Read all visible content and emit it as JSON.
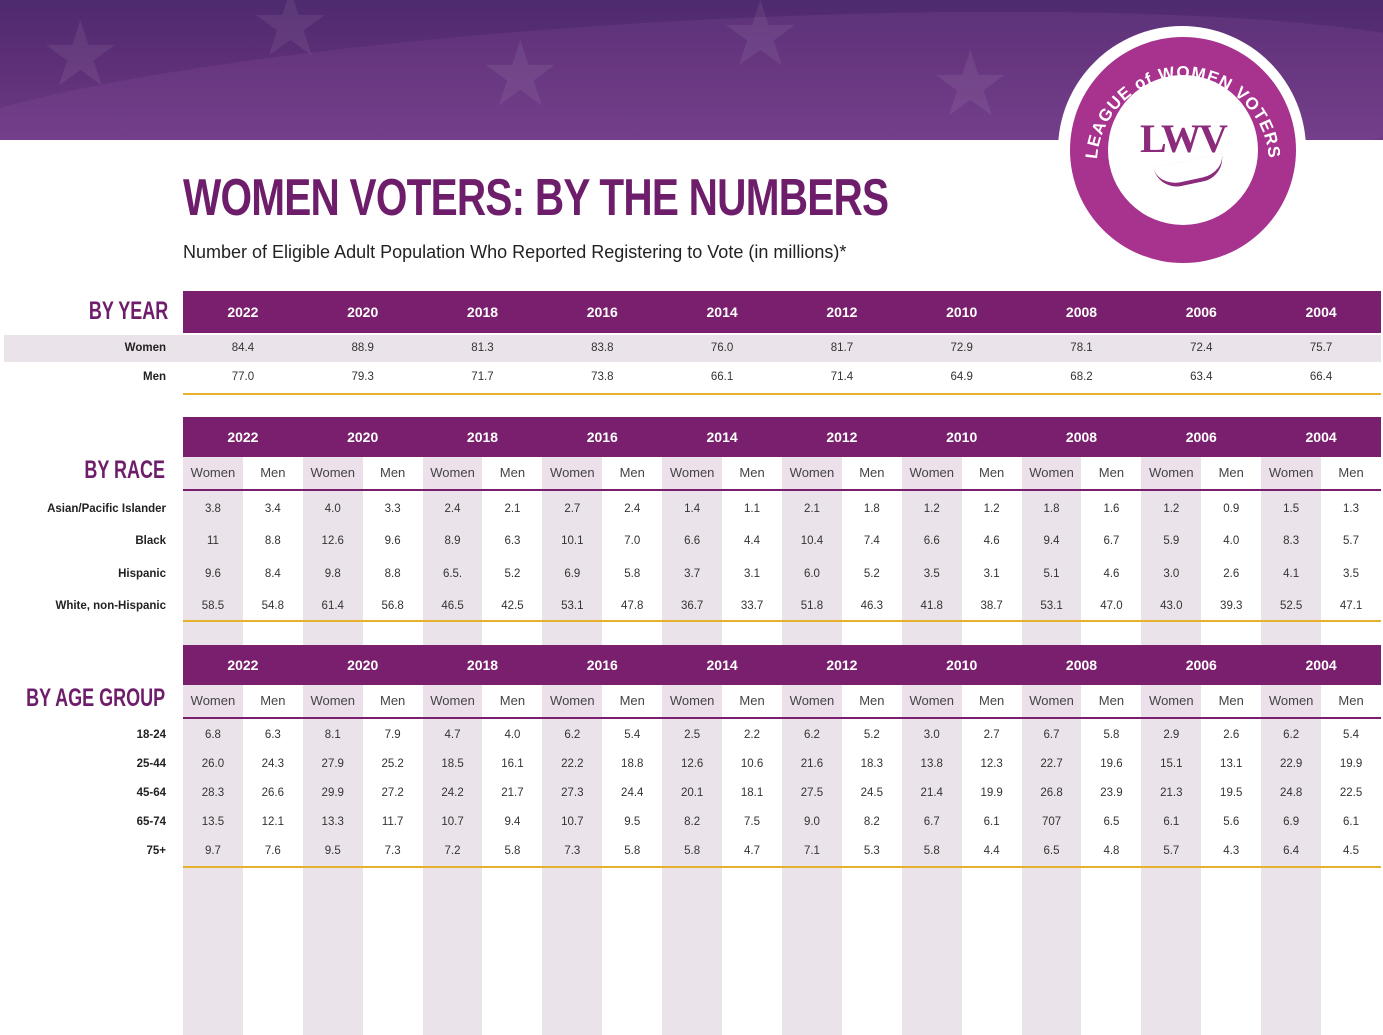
{
  "title": "WOMEN VOTERS: BY THE NUMBERS",
  "subtitle": "Number of Eligible Adult Population Who Reported Registering to Vote (in millions)*",
  "logo": {
    "ring_text": "LEAGUE of WOMEN VOTERS",
    "monogram": "LWV",
    "color": "#a8338f"
  },
  "colors": {
    "header_purple": "#7a1f6d",
    "title_purple": "#6e1d6b",
    "gold": "#e7b02e",
    "shade": "#ebe3ea"
  },
  "years": [
    "2022",
    "2020",
    "2018",
    "2016",
    "2014",
    "2012",
    "2010",
    "2008",
    "2006",
    "2004"
  ],
  "gender_labels": {
    "women": "Women",
    "men": "Men"
  },
  "by_year": {
    "label": "BY YEAR",
    "rows": [
      {
        "label": "Women",
        "values": [
          "84.4",
          "88.9",
          "81.3",
          "83.8",
          "76.0",
          "81.7",
          "72.9",
          "78.1",
          "72.4",
          "75.7"
        ]
      },
      {
        "label": "Men",
        "values": [
          "77.0",
          "79.3",
          "71.7",
          "73.8",
          "66.1",
          "71.4",
          "64.9",
          "68.2",
          "63.4",
          "66.4"
        ]
      }
    ]
  },
  "by_race": {
    "label": "BY RACE",
    "rows": [
      {
        "label": "Asian/Pacific Islander",
        "values": [
          "3.8",
          "3.4",
          "4.0",
          "3.3",
          "2.4",
          "2.1",
          "2.7",
          "2.4",
          "1.4",
          "1.1",
          "2.1",
          "1.8",
          "1.2",
          "1.2",
          "1.8",
          "1.6",
          "1.2",
          "0.9",
          "1.5",
          "1.3"
        ]
      },
      {
        "label": "Black",
        "values": [
          "11",
          "8.8",
          "12.6",
          "9.6",
          "8.9",
          "6.3",
          "10.1",
          "7.0",
          "6.6",
          "4.4",
          "10.4",
          "7.4",
          "6.6",
          "4.6",
          "9.4",
          "6.7",
          "5.9",
          "4.0",
          "8.3",
          "5.7"
        ]
      },
      {
        "label": "Hispanic",
        "values": [
          "9.6",
          "8.4",
          "9.8",
          "8.8",
          "6.5.",
          "5.2",
          "6.9",
          "5.8",
          "3.7",
          "3.1",
          "6.0",
          "5.2",
          "3.5",
          "3.1",
          "5.1",
          "4.6",
          "3.0",
          "2.6",
          "4.1",
          "3.5"
        ]
      },
      {
        "label": "White, non-Hispanic",
        "values": [
          "58.5",
          "54.8",
          "61.4",
          "56.8",
          "46.5",
          "42.5",
          "53.1",
          "47.8",
          "36.7",
          "33.7",
          "51.8",
          "46.3",
          "41.8",
          "38.7",
          "53.1",
          "47.0",
          "43.0",
          "39.3",
          "52.5",
          "47.1"
        ]
      }
    ]
  },
  "by_age": {
    "label": "BY AGE GROUP",
    "rows": [
      {
        "label": "18-24",
        "values": [
          "6.8",
          "6.3",
          "8.1",
          "7.9",
          "4.7",
          "4.0",
          "6.2",
          "5.4",
          "2.5",
          "2.2",
          "6.2",
          "5.2",
          "3.0",
          "2.7",
          "6.7",
          "5.8",
          "2.9",
          "2.6",
          "6.2",
          "5.4"
        ]
      },
      {
        "label": "25-44",
        "values": [
          "26.0",
          "24.3",
          "27.9",
          "25.2",
          "18.5",
          "16.1",
          "22.2",
          "18.8",
          "12.6",
          "10.6",
          "21.6",
          "18.3",
          "13.8",
          "12.3",
          "22.7",
          "19.6",
          "15.1",
          "13.1",
          "22.9",
          "19.9"
        ]
      },
      {
        "label": "45-64",
        "values": [
          "28.3",
          "26.6",
          "29.9",
          "27.2",
          "24.2",
          "21.7",
          "27.3",
          "24.4",
          "20.1",
          "18.1",
          "27.5",
          "24.5",
          "21.4",
          "19.9",
          "26.8",
          "23.9",
          "21.3",
          "19.5",
          "24.8",
          "22.5"
        ]
      },
      {
        "label": "65-74",
        "values": [
          "13.5",
          "12.1",
          "13.3",
          "11.7",
          "10.7",
          "9.4",
          "10.7",
          "9.5",
          "8.2",
          "7.5",
          "9.0",
          "8.2",
          "6.7",
          "6.1",
          "707",
          "6.5",
          "6.1",
          "5.6",
          "6.9",
          "6.1"
        ]
      },
      {
        "label": "75+",
        "values": [
          "9.7",
          "7.6",
          "9.5",
          "7.3",
          "7.2",
          "5.8",
          "7.3",
          "5.8",
          "5.8",
          "4.7",
          "7.1",
          "5.3",
          "5.8",
          "4.4",
          "6.5",
          "4.8",
          "5.7",
          "4.3",
          "6.4",
          "4.5"
        ]
      }
    ]
  }
}
